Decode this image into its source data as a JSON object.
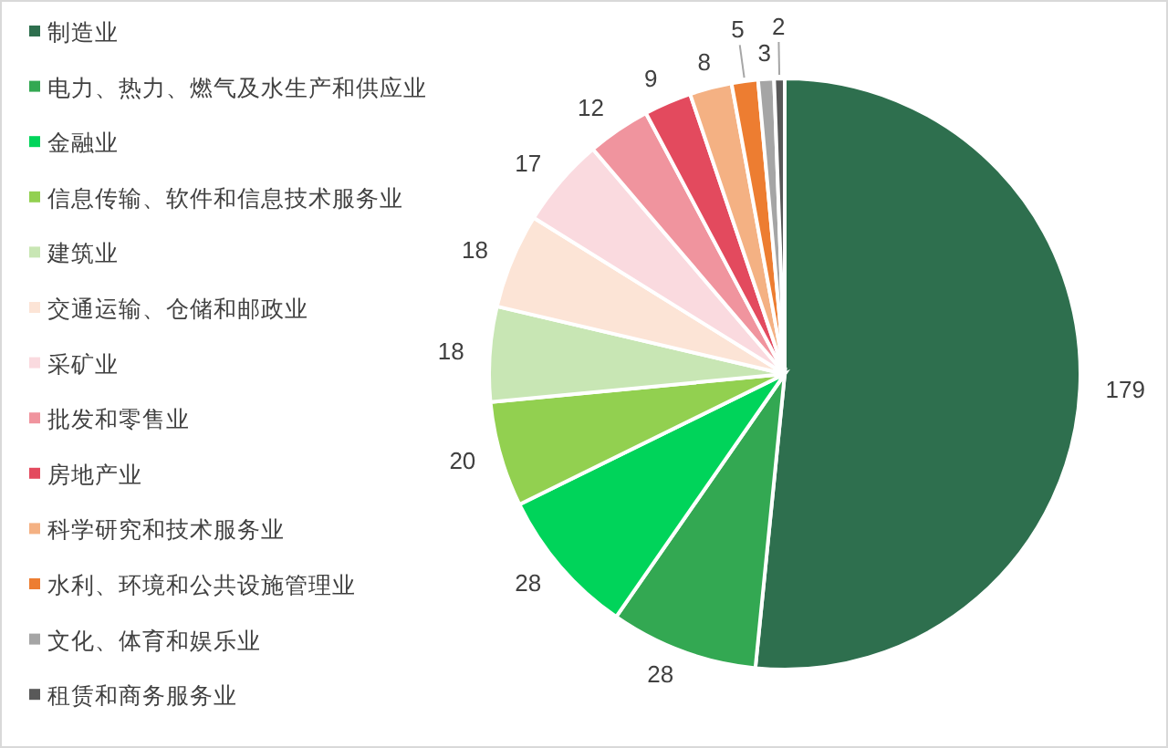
{
  "chart_data": {
    "type": "pie",
    "categories": [
      "制造业",
      "电力、热力、燃气及水生产和供应业",
      "金融业",
      "信息传输、软件和信息技术服务业",
      "建筑业",
      "交通运输、仓储和邮政业",
      "采矿业",
      "批发和零售业",
      "房地产业",
      "科学研究和技术服务业",
      "水利、环境和公共设施管理业",
      "文化、体育和娱乐业",
      "租赁和商务服务业"
    ],
    "values": [
      179,
      28,
      28,
      20,
      18,
      18,
      17,
      12,
      9,
      8,
      5,
      3,
      2
    ],
    "colors": [
      "#2e6f4e",
      "#33a852",
      "#00d45a",
      "#92d050",
      "#c8e6b4",
      "#fce4d6",
      "#fadadf",
      "#f0949e",
      "#e34a5e",
      "#f4b183",
      "#ed7d31",
      "#a5a5a5",
      "#595959"
    ],
    "data_labels": true,
    "legend": "left"
  }
}
